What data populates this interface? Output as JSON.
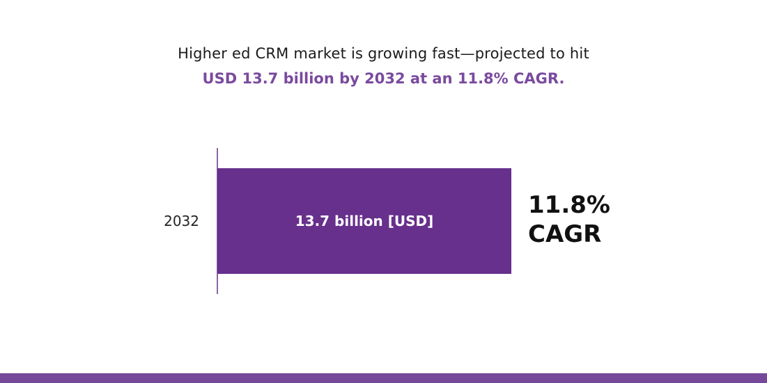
{
  "headline": {
    "line1": "Higher ed CRM market is growing fast—projected to hit",
    "line2": "USD 13.7 billion by 2032 at an 11.8% CAGR."
  },
  "chart_data": {
    "type": "bar",
    "orientation": "horizontal",
    "categories": [
      "2032"
    ],
    "values": [
      13.7
    ],
    "data_labels": [
      "13.7 billion [USD]"
    ],
    "annotation_lines": [
      "11.8%",
      "CAGR"
    ],
    "xlim": [
      0,
      13.7
    ],
    "grid": false,
    "colors": {
      "bar": "#67308c",
      "bar_label": "#ffffff",
      "axis": "#67308c",
      "category_label": "#222222",
      "annotation": "#111111"
    }
  },
  "colors": {
    "headline_text": "#1a1a1a",
    "headline_accent": "#7a4a9e",
    "bottom_band": "#76489a"
  }
}
